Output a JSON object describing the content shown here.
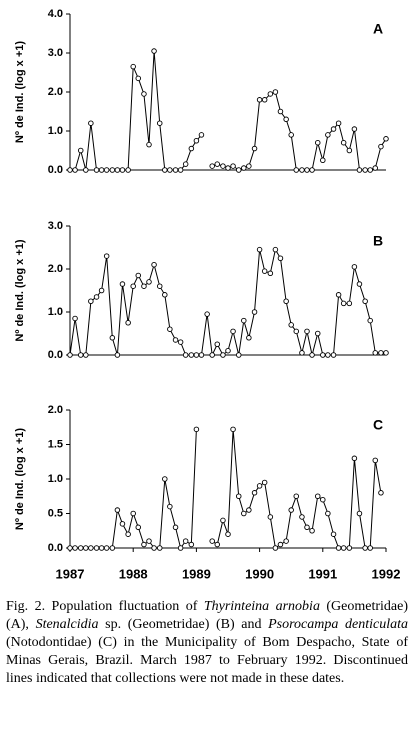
{
  "chart_data": [
    {
      "type": "line",
      "label": "A",
      "y_label": "Nº de Ind. (log x +1)",
      "x": [
        1987,
        1987.08,
        1987.17,
        1987.25,
        1987.33,
        1987.42,
        1987.5,
        1987.58,
        1987.67,
        1987.75,
        1987.83,
        1987.92,
        1988,
        1988.08,
        1988.17,
        1988.25,
        1988.33,
        1988.42,
        1988.5,
        1988.58,
        1988.67,
        1988.75,
        1988.83,
        1988.92,
        1989,
        1989.08,
        1989.17,
        1989.25,
        1989.33,
        1989.42,
        1989.5,
        1989.58,
        1989.67,
        1989.75,
        1989.83,
        1989.92,
        1990,
        1990.08,
        1990.17,
        1990.25,
        1990.33,
        1990.42,
        1990.5,
        1990.58,
        1990.67,
        1990.75,
        1990.83,
        1990.92,
        1991,
        1991.08,
        1991.17,
        1991.25,
        1991.33,
        1991.42,
        1991.5,
        1991.58,
        1991.67,
        1991.75,
        1991.83,
        1991.92,
        1992
      ],
      "series": [
        {
          "color": "#000000",
          "values": [
            0,
            0,
            0.5,
            0,
            1.2,
            0,
            0,
            0,
            0,
            0,
            0,
            0,
            2.65,
            2.35,
            1.95,
            0.65,
            3.05,
            1.2,
            0,
            0,
            0,
            0,
            0.15,
            0.55,
            0.75,
            0.9,
            null,
            0.1,
            0.15,
            0.1,
            0.05,
            0.1,
            0,
            0.05,
            0.1,
            0.55,
            1.8,
            1.8,
            1.95,
            2.0,
            1.5,
            1.3,
            0.9,
            0,
            0,
            0,
            0,
            0.7,
            0.25,
            0.9,
            1.05,
            1.2,
            0.7,
            0.5,
            1.05,
            0,
            0,
            0,
            0.05,
            0.6,
            0.8
          ]
        }
      ],
      "xlim": [
        1987,
        1992
      ],
      "ylim": [
        0,
        4
      ],
      "yticks": [
        {
          "value": 0,
          "label": "0.0"
        },
        {
          "value": 1,
          "label": "1.0"
        },
        {
          "value": 2,
          "label": "2.0"
        },
        {
          "value": 3,
          "label": "3.0"
        },
        {
          "value": 4,
          "label": "4.0"
        }
      ]
    },
    {
      "type": "line",
      "label": "B",
      "y_label": "Nº de Ind. (log x +1)",
      "x": [
        1987,
        1987.08,
        1987.17,
        1987.25,
        1987.33,
        1987.42,
        1987.5,
        1987.58,
        1987.67,
        1987.75,
        1987.83,
        1987.92,
        1988,
        1988.08,
        1988.17,
        1988.25,
        1988.33,
        1988.42,
        1988.5,
        1988.58,
        1988.67,
        1988.75,
        1988.83,
        1988.92,
        1989,
        1989.08,
        1989.17,
        1989.25,
        1989.33,
        1989.42,
        1989.5,
        1989.58,
        1989.67,
        1989.75,
        1989.83,
        1989.92,
        1990,
        1990.08,
        1990.17,
        1990.25,
        1990.33,
        1990.42,
        1990.5,
        1990.58,
        1990.67,
        1990.75,
        1990.83,
        1990.92,
        1991,
        1991.08,
        1991.17,
        1991.25,
        1991.33,
        1991.42,
        1991.5,
        1991.58,
        1991.67,
        1991.75,
        1991.83,
        1991.92,
        1992
      ],
      "series": [
        {
          "color": "#000000",
          "values": [
            0,
            0.85,
            0,
            0,
            1.25,
            1.35,
            1.5,
            2.3,
            0.4,
            0,
            1.65,
            0.75,
            1.6,
            1.85,
            1.6,
            1.7,
            2.1,
            1.6,
            1.4,
            0.6,
            0.35,
            0.3,
            0,
            0,
            0,
            0,
            0.95,
            0,
            0.25,
            0,
            0.1,
            0.55,
            0,
            0.8,
            0.4,
            1.0,
            2.45,
            1.95,
            1.9,
            2.45,
            2.25,
            1.25,
            0.7,
            0.55,
            0.05,
            0.55,
            0,
            0.5,
            0,
            0,
            0,
            1.4,
            1.2,
            1.2,
            2.05,
            1.65,
            1.25,
            0.8,
            0.05,
            0.05,
            0.05
          ]
        }
      ],
      "xlim": [
        1987,
        1992
      ],
      "ylim": [
        0,
        3
      ],
      "yticks": [
        {
          "value": 0,
          "label": "0.0"
        },
        {
          "value": 1,
          "label": "1.0"
        },
        {
          "value": 2,
          "label": "2.0"
        },
        {
          "value": 3,
          "label": "3.0"
        }
      ]
    },
    {
      "type": "line",
      "label": "C",
      "y_label": "Nº de Ind. (log x +1)",
      "x": [
        1987,
        1987.08,
        1987.17,
        1987.25,
        1987.33,
        1987.42,
        1987.5,
        1987.58,
        1987.67,
        1987.75,
        1987.83,
        1987.92,
        1988,
        1988.08,
        1988.17,
        1988.25,
        1988.33,
        1988.42,
        1988.5,
        1988.58,
        1988.67,
        1988.75,
        1988.83,
        1988.92,
        1989,
        1989.08,
        1989.17,
        1989.25,
        1989.33,
        1989.42,
        1989.5,
        1989.58,
        1989.67,
        1989.75,
        1989.83,
        1989.92,
        1990,
        1990.08,
        1990.17,
        1990.25,
        1990.33,
        1990.42,
        1990.5,
        1990.58,
        1990.67,
        1990.75,
        1990.83,
        1990.92,
        1991,
        1991.08,
        1991.17,
        1991.25,
        1991.33,
        1991.42,
        1991.5,
        1991.58,
        1991.67,
        1991.75,
        1991.83,
        1991.92,
        1992
      ],
      "series": [
        {
          "color": "#000000",
          "values": [
            0,
            0,
            0,
            0,
            0,
            0,
            0,
            0,
            0,
            0.55,
            0.35,
            0.2,
            0.5,
            0.3,
            0.05,
            0.1,
            0,
            0,
            1.0,
            0.6,
            0.3,
            0,
            0.1,
            0.05,
            1.72,
            null,
            null,
            0.1,
            0.05,
            0.4,
            0.2,
            1.72,
            0.75,
            0.5,
            0.55,
            0.8,
            0.9,
            0.95,
            0.45,
            0,
            0.05,
            0.1,
            0.55,
            0.75,
            0.45,
            0.3,
            0.25,
            0.75,
            0.7,
            0.5,
            0.2,
            0,
            0,
            0,
            1.3,
            0.5,
            0,
            0,
            1.27,
            0.8,
            null
          ]
        }
      ],
      "xlim": [
        1987,
        1992
      ],
      "ylim": [
        0,
        2
      ],
      "yticks": [
        {
          "value": 0,
          "label": "0.0"
        },
        {
          "value": 0.5,
          "label": "0.5"
        },
        {
          "value": 1,
          "label": "1.0"
        },
        {
          "value": 1.5,
          "label": "1.5"
        },
        {
          "value": 2,
          "label": "2.0"
        }
      ],
      "xticks": [
        1987,
        1988,
        1989,
        1990,
        1991,
        1992
      ]
    }
  ],
  "caption": [
    "Fig. 2. Population fluctuation of ",
    "Thyrinteina arnobia",
    " (Geometridae) (A), ",
    "Stenalcidia",
    " sp. (Geometridae) (B) and ",
    "Psorocampa denticulata",
    " (Notodontidae) (C) in the Municipality of Bom Despacho, State of Minas Gerais, Brazil. March 1987 to February 1992. Discontinued lines indicated that collections were not made in these dates."
  ]
}
